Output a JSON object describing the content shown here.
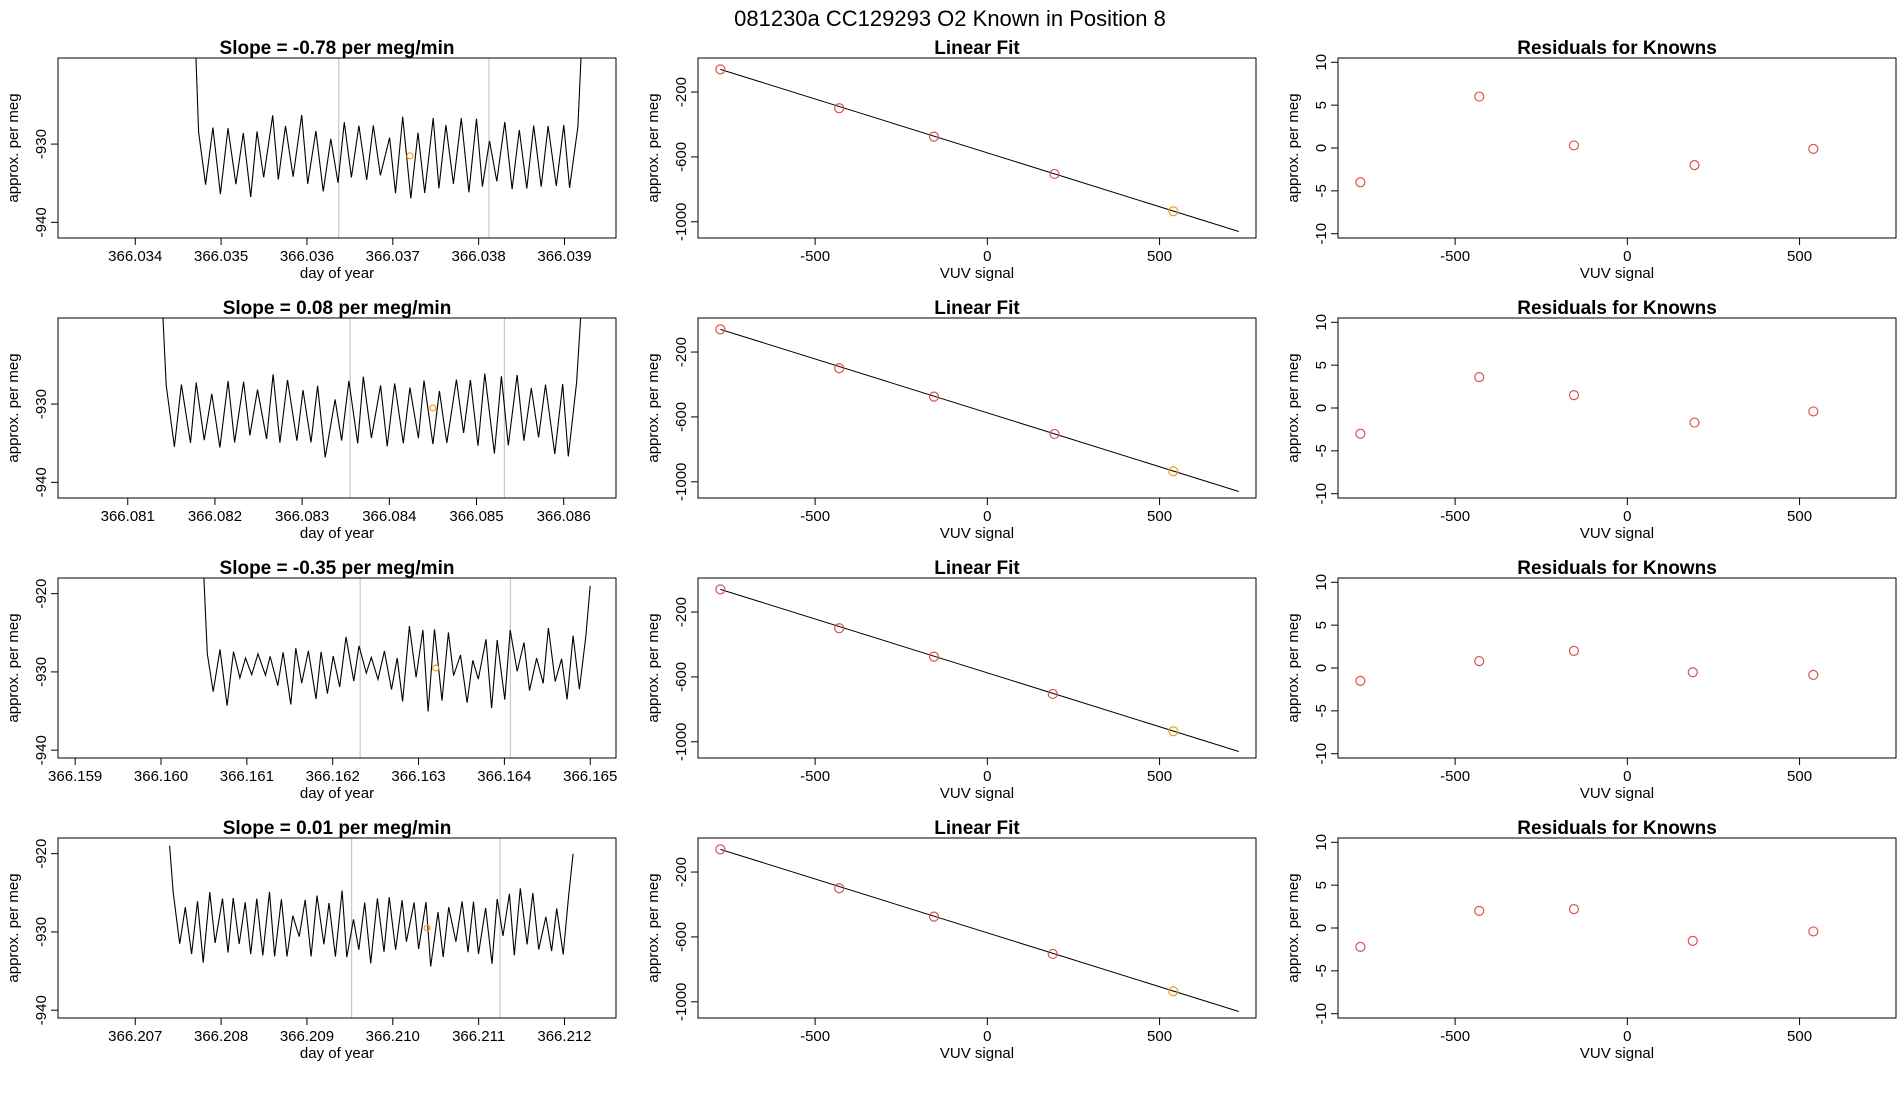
{
  "figure_title": "081230a      CC129293    O2 Known in Position  8",
  "colors": {
    "line": "#000000",
    "axis": "#000000",
    "vline": "#c8c8c8",
    "point_red": "#d9534f",
    "point_orange": "#f0a020"
  },
  "chart_data": [
    {
      "panel": "time-series-1",
      "type": "line",
      "title": "Slope =  -0.78  per meg/min",
      "xlabel": "day of year",
      "ylabel": "approx. per meg",
      "xlim": [
        366.0331,
        366.0396
      ],
      "ylim": [
        -942,
        -919
      ],
      "xticks": [
        {
          "v": 366.034,
          "label": "366.034"
        },
        {
          "v": 366.035,
          "label": "366.035"
        },
        {
          "v": 366.036,
          "label": "366.036"
        },
        {
          "v": 366.037,
          "label": "366.037"
        },
        {
          "v": 366.038,
          "label": "366.038"
        },
        {
          "v": 366.039,
          "label": "366.039"
        }
      ],
      "yticks": [
        {
          "v": -930,
          "label": "-930"
        },
        {
          "v": -940,
          "label": "-940"
        }
      ],
      "x_start": 366.0347,
      "x_end": 366.0392,
      "center": -931.5,
      "amplitude": 4.5,
      "cycles": 26,
      "noise": 0.9,
      "seed": 11,
      "start_y": -917,
      "end_y": -917,
      "vlines": [
        366.03637,
        366.03812
      ],
      "marker": {
        "x": 366.0372,
        "y": -931.5
      }
    },
    {
      "panel": "time-series-2",
      "type": "line",
      "title": "Slope =  0.08  per meg/min",
      "xlabel": "day of year",
      "ylabel": "approx. per meg",
      "xlim": [
        366.0802,
        366.0866
      ],
      "ylim": [
        -942,
        -919
      ],
      "xticks": [
        {
          "v": 366.081,
          "label": "366.081"
        },
        {
          "v": 366.082,
          "label": "366.082"
        },
        {
          "v": 366.083,
          "label": "366.083"
        },
        {
          "v": 366.084,
          "label": "366.084"
        },
        {
          "v": 366.085,
          "label": "366.085"
        },
        {
          "v": 366.086,
          "label": "366.086"
        }
      ],
      "yticks": [
        {
          "v": -930,
          "label": "-930"
        },
        {
          "v": -940,
          "label": "-940"
        }
      ],
      "x_start": 366.0814,
      "x_end": 366.0862,
      "center": -931.5,
      "amplitude": 4.8,
      "cycles": 27,
      "noise": 1.0,
      "seed": 23,
      "start_y": -918,
      "end_y": -918,
      "vlines": [
        366.08355,
        366.08532
      ],
      "marker": {
        "x": 366.0845,
        "y": -930.5
      }
    },
    {
      "panel": "time-series-3",
      "type": "line",
      "title": "Slope =  -0.35  per meg/min",
      "xlabel": "day of year",
      "ylabel": "approx. per meg",
      "xlim": [
        366.1588,
        366.1653
      ],
      "ylim": [
        -941,
        -918
      ],
      "xticks": [
        {
          "v": 366.159,
          "label": "366.159"
        },
        {
          "v": 366.16,
          "label": "366.160"
        },
        {
          "v": 366.161,
          "label": "366.161"
        },
        {
          "v": 366.162,
          "label": "366.162"
        },
        {
          "v": 366.163,
          "label": "366.163"
        },
        {
          "v": 366.164,
          "label": "366.164"
        },
        {
          "v": 366.165,
          "label": "366.165"
        }
      ],
      "yticks": [
        {
          "v": -920,
          "label": "-920"
        },
        {
          "v": -930,
          "label": "-930"
        },
        {
          "v": -940,
          "label": "-940"
        }
      ],
      "x_start": 366.1605,
      "x_end": 366.165,
      "center": -929.5,
      "amplitude": 3.5,
      "cycles": 30,
      "noise": 2.0,
      "seed": 37,
      "start_y": -918,
      "end_y": -919,
      "vlines": [
        366.16232,
        366.16407
      ],
      "marker": {
        "x": 366.1632,
        "y": -929.5
      }
    },
    {
      "panel": "time-series-4",
      "type": "line",
      "title": "Slope =  0.01  per meg/min",
      "xlabel": "day of year",
      "ylabel": "approx. per meg",
      "xlim": [
        366.2061,
        366.2126
      ],
      "ylim": [
        -941,
        -918
      ],
      "xticks": [
        {
          "v": 366.207,
          "label": "366.207"
        },
        {
          "v": 366.208,
          "label": "366.208"
        },
        {
          "v": 366.209,
          "label": "366.209"
        },
        {
          "v": 366.21,
          "label": "366.210"
        },
        {
          "v": 366.211,
          "label": "366.211"
        },
        {
          "v": 366.212,
          "label": "366.212"
        }
      ],
      "yticks": [
        {
          "v": -920,
          "label": "-920"
        },
        {
          "v": -930,
          "label": "-930"
        },
        {
          "v": -940,
          "label": "-940"
        }
      ],
      "x_start": 366.2074,
      "x_end": 366.2121,
      "center": -929.5,
      "amplitude": 3.6,
      "cycles": 33,
      "noise": 1.6,
      "seed": 51,
      "start_y": -919,
      "end_y": -920,
      "vlines": [
        366.20952,
        366.21125
      ],
      "marker": {
        "x": 366.2104,
        "y": -929.5
      }
    },
    {
      "panel": "linear-fit-1",
      "type": "scatter",
      "title": "Linear Fit",
      "xlabel": "VUV signal",
      "ylabel": "approx. per meg",
      "xlim": [
        -840,
        780
      ],
      "ylim": [
        -1100,
        10
      ],
      "xticks": [
        {
          "v": -500,
          "label": "-500"
        },
        {
          "v": 0,
          "label": "0"
        },
        {
          "v": 500,
          "label": "500"
        }
      ],
      "yticks": [
        {
          "v": -200,
          "label": "-200"
        },
        {
          "v": -600,
          "label": "-600"
        },
        {
          "v": -1000,
          "label": "-1000"
        }
      ],
      "points": [
        {
          "x": -775,
          "y": -60,
          "c": "red"
        },
        {
          "x": -430,
          "y": -300,
          "c": "red"
        },
        {
          "x": -155,
          "y": -475,
          "c": "red"
        },
        {
          "x": 195,
          "y": -705,
          "c": "red"
        },
        {
          "x": 540,
          "y": -935,
          "c": "orange"
        }
      ],
      "fit_line": [
        {
          "x": -775,
          "y": -60
        },
        {
          "x": 730,
          "y": -1060
        }
      ]
    },
    {
      "panel": "linear-fit-2",
      "type": "scatter",
      "title": "Linear Fit",
      "xlabel": "VUV signal",
      "ylabel": "approx. per meg",
      "xlim": [
        -840,
        780
      ],
      "ylim": [
        -1100,
        10
      ],
      "xticks": [
        {
          "v": -500,
          "label": "-500"
        },
        {
          "v": 0,
          "label": "0"
        },
        {
          "v": 500,
          "label": "500"
        }
      ],
      "yticks": [
        {
          "v": -200,
          "label": "-200"
        },
        {
          "v": -600,
          "label": "-600"
        },
        {
          "v": -1000,
          "label": "-1000"
        }
      ],
      "points": [
        {
          "x": -775,
          "y": -60,
          "c": "red"
        },
        {
          "x": -430,
          "y": -300,
          "c": "red"
        },
        {
          "x": -155,
          "y": -475,
          "c": "red"
        },
        {
          "x": 195,
          "y": -705,
          "c": "red"
        },
        {
          "x": 540,
          "y": -935,
          "c": "orange"
        }
      ],
      "fit_line": [
        {
          "x": -775,
          "y": -60
        },
        {
          "x": 730,
          "y": -1060
        }
      ]
    },
    {
      "panel": "linear-fit-3",
      "type": "scatter",
      "title": "Linear Fit",
      "xlabel": "VUV signal",
      "ylabel": "approx. per meg",
      "xlim": [
        -840,
        780
      ],
      "ylim": [
        -1100,
        10
      ],
      "xticks": [
        {
          "v": -500,
          "label": "-500"
        },
        {
          "v": 0,
          "label": "0"
        },
        {
          "v": 500,
          "label": "500"
        }
      ],
      "yticks": [
        {
          "v": -200,
          "label": "-200"
        },
        {
          "v": -600,
          "label": "-600"
        },
        {
          "v": -1000,
          "label": "-1000"
        }
      ],
      "points": [
        {
          "x": -775,
          "y": -60,
          "c": "red"
        },
        {
          "x": -430,
          "y": -300,
          "c": "red"
        },
        {
          "x": -155,
          "y": -475,
          "c": "red"
        },
        {
          "x": 190,
          "y": -705,
          "c": "red"
        },
        {
          "x": 540,
          "y": -935,
          "c": "orange"
        }
      ],
      "fit_line": [
        {
          "x": -775,
          "y": -60
        },
        {
          "x": 730,
          "y": -1060
        }
      ]
    },
    {
      "panel": "linear-fit-4",
      "type": "scatter",
      "title": "Linear Fit",
      "xlabel": "VUV signal",
      "ylabel": "approx. per meg",
      "xlim": [
        -840,
        780
      ],
      "ylim": [
        -1100,
        10
      ],
      "xticks": [
        {
          "v": -500,
          "label": "-500"
        },
        {
          "v": 0,
          "label": "0"
        },
        {
          "v": 500,
          "label": "500"
        }
      ],
      "yticks": [
        {
          "v": -200,
          "label": "-200"
        },
        {
          "v": -600,
          "label": "-600"
        },
        {
          "v": -1000,
          "label": "-1000"
        }
      ],
      "points": [
        {
          "x": -775,
          "y": -60,
          "c": "red"
        },
        {
          "x": -430,
          "y": -300,
          "c": "red"
        },
        {
          "x": -155,
          "y": -475,
          "c": "red"
        },
        {
          "x": 190,
          "y": -705,
          "c": "red"
        },
        {
          "x": 540,
          "y": -935,
          "c": "orange"
        }
      ],
      "fit_line": [
        {
          "x": -775,
          "y": -60
        },
        {
          "x": 730,
          "y": -1060
        }
      ]
    },
    {
      "panel": "residuals-1",
      "type": "scatter",
      "title": "Residuals for Knowns",
      "xlabel": "VUV signal",
      "ylabel": "approx. per meg",
      "xlim": [
        -840,
        780
      ],
      "ylim": [
        -10.5,
        10.5
      ],
      "xticks": [
        {
          "v": -500,
          "label": "-500"
        },
        {
          "v": 0,
          "label": "0"
        },
        {
          "v": 500,
          "label": "500"
        }
      ],
      "yticks": [
        {
          "v": 10,
          "label": "10"
        },
        {
          "v": 5,
          "label": "5"
        },
        {
          "v": 0,
          "label": "0"
        },
        {
          "v": -5,
          "label": "-5"
        },
        {
          "v": -10,
          "label": "-10"
        }
      ],
      "points": [
        {
          "x": -775,
          "y": -4.0,
          "c": "red"
        },
        {
          "x": -430,
          "y": 6.0,
          "c": "red"
        },
        {
          "x": -155,
          "y": 0.3,
          "c": "red"
        },
        {
          "x": 195,
          "y": -2.0,
          "c": "red"
        },
        {
          "x": 540,
          "y": -0.1,
          "c": "red"
        }
      ]
    },
    {
      "panel": "residuals-2",
      "type": "scatter",
      "title": "Residuals for Knowns",
      "xlabel": "VUV signal",
      "ylabel": "approx. per meg",
      "xlim": [
        -840,
        780
      ],
      "ylim": [
        -10.5,
        10.5
      ],
      "xticks": [
        {
          "v": -500,
          "label": "-500"
        },
        {
          "v": 0,
          "label": "0"
        },
        {
          "v": 500,
          "label": "500"
        }
      ],
      "yticks": [
        {
          "v": 10,
          "label": "10"
        },
        {
          "v": 5,
          "label": "5"
        },
        {
          "v": 0,
          "label": "0"
        },
        {
          "v": -5,
          "label": "-5"
        },
        {
          "v": -10,
          "label": "-10"
        }
      ],
      "points": [
        {
          "x": -775,
          "y": -3.0,
          "c": "red"
        },
        {
          "x": -430,
          "y": 3.6,
          "c": "red"
        },
        {
          "x": -155,
          "y": 1.5,
          "c": "red"
        },
        {
          "x": 195,
          "y": -1.7,
          "c": "red"
        },
        {
          "x": 540,
          "y": -0.4,
          "c": "red"
        }
      ]
    },
    {
      "panel": "residuals-3",
      "type": "scatter",
      "title": "Residuals for Knowns",
      "xlabel": "VUV signal",
      "ylabel": "approx. per meg",
      "xlim": [
        -840,
        780
      ],
      "ylim": [
        -10.5,
        10.5
      ],
      "xticks": [
        {
          "v": -500,
          "label": "-500"
        },
        {
          "v": 0,
          "label": "0"
        },
        {
          "v": 500,
          "label": "500"
        }
      ],
      "yticks": [
        {
          "v": 10,
          "label": "10"
        },
        {
          "v": 5,
          "label": "5"
        },
        {
          "v": 0,
          "label": "0"
        },
        {
          "v": -5,
          "label": "-5"
        },
        {
          "v": -10,
          "label": "-10"
        }
      ],
      "points": [
        {
          "x": -775,
          "y": -1.5,
          "c": "red"
        },
        {
          "x": -430,
          "y": 0.8,
          "c": "red"
        },
        {
          "x": -155,
          "y": 2.0,
          "c": "red"
        },
        {
          "x": 190,
          "y": -0.5,
          "c": "red"
        },
        {
          "x": 540,
          "y": -0.8,
          "c": "red"
        }
      ]
    },
    {
      "panel": "residuals-4",
      "type": "scatter",
      "title": "Residuals for Knowns",
      "xlabel": "VUV signal",
      "ylabel": "approx. per meg",
      "xlim": [
        -840,
        780
      ],
      "ylim": [
        -10.5,
        10.5
      ],
      "xticks": [
        {
          "v": -500,
          "label": "-500"
        },
        {
          "v": 0,
          "label": "0"
        },
        {
          "v": 500,
          "label": "500"
        }
      ],
      "yticks": [
        {
          "v": 10,
          "label": "10"
        },
        {
          "v": 5,
          "label": "5"
        },
        {
          "v": 0,
          "label": "0"
        },
        {
          "v": -5,
          "label": "-5"
        },
        {
          "v": -10,
          "label": "-10"
        }
      ],
      "points": [
        {
          "x": -775,
          "y": -2.2,
          "c": "red"
        },
        {
          "x": -430,
          "y": 2.0,
          "c": "red"
        },
        {
          "x": -155,
          "y": 2.2,
          "c": "red"
        },
        {
          "x": 190,
          "y": -1.5,
          "c": "red"
        },
        {
          "x": 540,
          "y": -0.4,
          "c": "red"
        }
      ]
    }
  ]
}
